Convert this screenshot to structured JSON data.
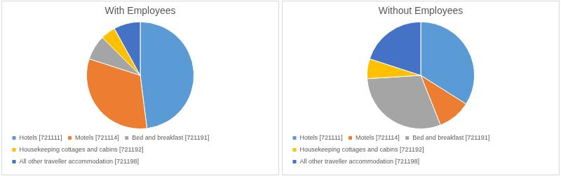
{
  "chart_data": [
    {
      "type": "pie",
      "title": "With Employees",
      "categories": [
        "Hotels [721111]",
        "Motels [721114]",
        "Bed and breakfast [721191]",
        "Housekeeping cottages and cabins [721192]",
        "All other traveller accommodation [721198]"
      ],
      "values": [
        48,
        32,
        7.5,
        4.5,
        8
      ],
      "colors": [
        "#5b9bd5",
        "#ed7d31",
        "#a5a5a5",
        "#ffc000",
        "#4472c4"
      ],
      "legend": "bottom"
    },
    {
      "type": "pie",
      "title": "Without Employees",
      "categories": [
        "Hotels [721111]",
        "Motels [721114]",
        "Bed and breakfast [721191]",
        "Housekeeping cottages and cabins [721192]",
        "All other traveller accommodation [721198]"
      ],
      "values": [
        34,
        10,
        30,
        6,
        20
      ],
      "colors": [
        "#5b9bd5",
        "#ed7d31",
        "#a5a5a5",
        "#ffc000",
        "#4472c4"
      ],
      "legend": "bottom"
    }
  ]
}
